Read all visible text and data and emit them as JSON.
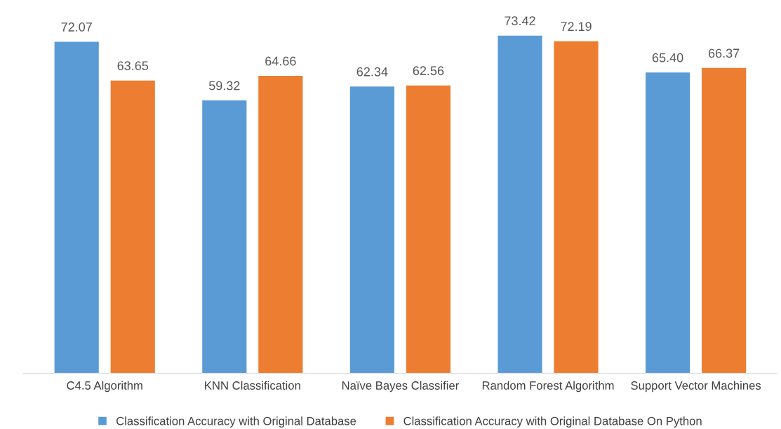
{
  "chart_data": {
    "type": "bar",
    "categories": [
      "C4.5 Algorithm",
      "KNN Classification",
      "Naïve Bayes Classifier",
      "Random Forest Algorithm",
      "Support Vector Machines"
    ],
    "series": [
      {
        "name": "Classification Accuracy with Original Database",
        "color": "#5b9bd5",
        "values": [
          72.07,
          59.32,
          62.34,
          73.42,
          65.4
        ],
        "value_labels": [
          "72.07",
          "59.32",
          "62.34",
          "73.42",
          "65.40"
        ]
      },
      {
        "name": "Classification Accuracy with Original Database On Python",
        "color": "#ed7d31",
        "values": [
          63.65,
          64.66,
          62.56,
          72.19,
          66.37
        ],
        "value_labels": [
          "63.65",
          "64.66",
          "62.56",
          "72.19",
          "66.37"
        ]
      }
    ],
    "grid": false,
    "legend": "bottom"
  }
}
